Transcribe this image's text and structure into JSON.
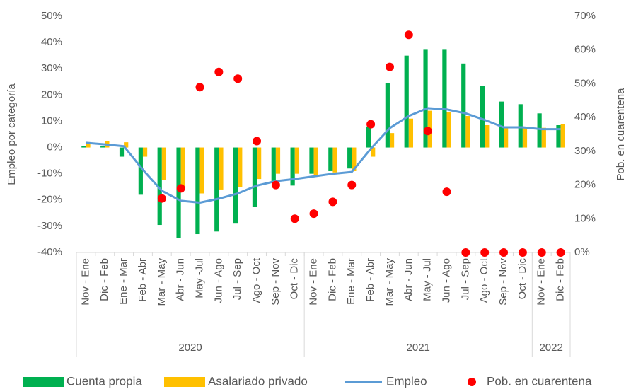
{
  "chart_data": {
    "type": "bar",
    "y_label": "Empleo por categoría",
    "y2_label": "Pob. en cuarentena",
    "categories": [
      "Nov - Ene",
      "Dic - Feb",
      "Ene - Mar",
      "Feb - Abr",
      "Mar - May",
      "Abr - Jun",
      "May -Jul",
      "Jun - Ago",
      "Jul - Sep",
      "Ago - Oct",
      "Sep - Nov",
      "Oct - Dic",
      "Nov - Ene",
      "Dic - Feb",
      "Ene - Mar",
      "Feb - Abr",
      "Mar - May",
      "Abr - Jun",
      "May - Jul",
      "Jun - Ago",
      "Jul - Sep",
      "Ago - Oct",
      "Sep - Nov",
      "Oct - Dic",
      "Nov - Ene",
      "Dic - Feb"
    ],
    "groups": [
      {
        "label": "2020",
        "count": 12
      },
      {
        "label": "2021",
        "count": 12
      },
      {
        "label": "2022",
        "count": 2
      }
    ],
    "series": [
      {
        "name": "Cuenta propia",
        "type": "bar",
        "color": "#00b050",
        "values": [
          0.5,
          0.5,
          -3.5,
          -18,
          -29.5,
          -34.5,
          -33,
          -32,
          -29,
          -22.5,
          -13.5,
          -14.5,
          -10,
          -9,
          -8,
          8,
          24.5,
          35,
          37.5,
          37.5,
          32,
          23.5,
          17.5,
          16.5,
          13,
          8.5
        ]
      },
      {
        "name": "Asalariado privado",
        "type": "bar",
        "color": "#ffc000",
        "values": [
          1.5,
          2.5,
          2,
          -3.5,
          -12.5,
          -15.5,
          -17.5,
          -16,
          -15,
          -12,
          -10,
          -10,
          -10.5,
          -9.5,
          -9,
          -3.5,
          5.5,
          11,
          14,
          13.5,
          12,
          8.5,
          7.5,
          7.5,
          7.5,
          9
        ]
      },
      {
        "name": "Empleo",
        "type": "line",
        "color": "#5b9bd5",
        "values": [
          1.8,
          1.2,
          0.5,
          -8.5,
          -16.5,
          -20.3,
          -21,
          -19.5,
          -17.5,
          -14.5,
          -12.8,
          -12,
          -11,
          -10,
          -9.3,
          -0.5,
          7.4,
          12,
          15,
          14.5,
          13,
          10.5,
          7.7,
          7.7,
          7,
          7
        ]
      },
      {
        "name": "Pob. en cuarentena",
        "type": "scatter",
        "color": "#ff0000",
        "axis": "y2",
        "values": [
          null,
          null,
          null,
          null,
          16,
          19,
          49,
          53.5,
          51.5,
          33,
          20,
          10,
          11.5,
          15,
          20,
          38,
          55,
          64.5,
          36,
          18,
          0,
          0,
          0,
          0,
          0,
          0
        ]
      }
    ],
    "ylim": [
      -40,
      50
    ],
    "yticks": [
      {
        "value": -40,
        "label": "-40%"
      },
      {
        "value": -30,
        "label": "-30%"
      },
      {
        "value": -20,
        "label": "-20%"
      },
      {
        "value": -10,
        "label": "-10%"
      },
      {
        "value": 0,
        "label": "0%"
      },
      {
        "value": 10,
        "label": "10%"
      },
      {
        "value": 20,
        "label": "20%"
      },
      {
        "value": 30,
        "label": "30%"
      },
      {
        "value": 40,
        "label": "40%"
      },
      {
        "value": 50,
        "label": "50%"
      }
    ],
    "y2lim": [
      0,
      70
    ],
    "y2ticks": [
      {
        "value": 0,
        "label": "0%"
      },
      {
        "value": 10,
        "label": "10%"
      },
      {
        "value": 20,
        "label": "20%"
      },
      {
        "value": 30,
        "label": "30%"
      },
      {
        "value": 40,
        "label": "40%"
      },
      {
        "value": 50,
        "label": "50%"
      },
      {
        "value": 60,
        "label": "60%"
      },
      {
        "value": 70,
        "label": "70%"
      }
    ],
    "legend": "bottom"
  }
}
